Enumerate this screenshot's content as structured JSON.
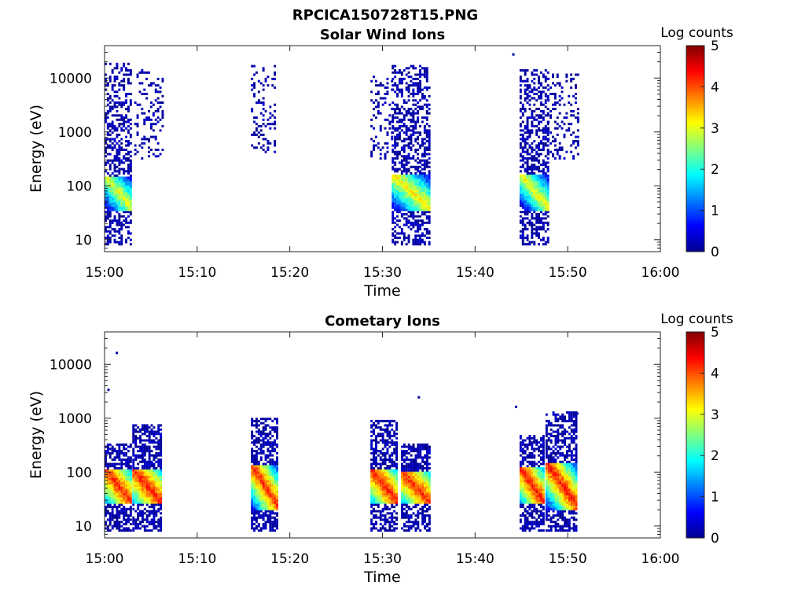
{
  "figure_title": "RPCICA150728T15.PNG",
  "chart_data": [
    {
      "type": "heatmap",
      "title": "Solar Wind Ions",
      "xlabel": "Time",
      "ylabel": "Energy (eV)",
      "xlim": [
        "15:00",
        "16:00"
      ],
      "xticks": [
        "15:00",
        "15:10",
        "15:20",
        "15:30",
        "15:40",
        "15:50",
        "16:00"
      ],
      "ylim": [
        6,
        40000
      ],
      "yscale": "log",
      "yticks": [
        "10",
        "100",
        "1000",
        "10000"
      ],
      "colorbar": {
        "label": "Log counts",
        "min": 0,
        "max": 5,
        "ticks": [
          "0",
          "1",
          "2",
          "3",
          "4",
          "5"
        ],
        "colormap": "jet"
      },
      "clusters": [
        {
          "start_min": 0.0,
          "end_min": 2.8,
          "sparse_emin": 8,
          "sparse_emax": 20000,
          "core_emin": 35,
          "core_emax": 150,
          "core_logcount": 3.0,
          "density": 0.55
        },
        {
          "start_min": 3.2,
          "end_min": 6.2,
          "sparse_emin": 300,
          "sparse_emax": 15000,
          "core_emin": 0,
          "core_emax": 0,
          "core_logcount": 0,
          "density": 0.3
        },
        {
          "start_min": 15.8,
          "end_min": 18.5,
          "sparse_emin": 400,
          "sparse_emax": 17000,
          "core_emin": 0,
          "core_emax": 0,
          "core_logcount": 0,
          "density": 0.25
        },
        {
          "start_min": 28.7,
          "end_min": 31.0,
          "sparse_emin": 300,
          "sparse_emax": 14000,
          "core_emin": 0,
          "core_emax": 0,
          "core_logcount": 0,
          "density": 0.3
        },
        {
          "start_min": 31.0,
          "end_min": 35.0,
          "sparse_emin": 8,
          "sparse_emax": 18000,
          "core_emin": 35,
          "core_emax": 160,
          "core_logcount": 3.2,
          "density": 0.6
        },
        {
          "start_min": 44.8,
          "end_min": 47.8,
          "sparse_emin": 8,
          "sparse_emax": 15000,
          "core_emin": 35,
          "core_emax": 170,
          "core_logcount": 3.1,
          "density": 0.6
        },
        {
          "start_min": 47.8,
          "end_min": 51.0,
          "sparse_emin": 300,
          "sparse_emax": 12000,
          "core_emin": 0,
          "core_emax": 0,
          "core_logcount": 0,
          "density": 0.3
        }
      ],
      "outliers": [
        {
          "t_min": 44.0,
          "energy": 27000
        }
      ]
    },
    {
      "type": "heatmap",
      "title": "Cometary Ions",
      "xlabel": "Time",
      "ylabel": "Energy (eV)",
      "xlim": [
        "15:00",
        "16:00"
      ],
      "xticks": [
        "15:00",
        "15:10",
        "15:20",
        "15:30",
        "15:40",
        "15:50",
        "16:00"
      ],
      "ylim": [
        6,
        40000
      ],
      "yscale": "log",
      "yticks": [
        "10",
        "100",
        "1000",
        "10000"
      ],
      "colorbar": {
        "label": "Log counts",
        "min": 0,
        "max": 5,
        "ticks": [
          "0",
          "1",
          "2",
          "3",
          "4",
          "5"
        ],
        "colormap": "jet"
      },
      "clusters": [
        {
          "start_min": 0.0,
          "end_min": 2.8,
          "sparse_emin": 8,
          "sparse_emax": 350,
          "core_emin": 25,
          "core_emax": 110,
          "core_logcount": 4.2,
          "density": 0.7
        },
        {
          "start_min": 3.0,
          "end_min": 6.0,
          "sparse_emin": 8,
          "sparse_emax": 800,
          "core_emin": 25,
          "core_emax": 110,
          "core_logcount": 4.3,
          "density": 0.7
        },
        {
          "start_min": 15.8,
          "end_min": 18.7,
          "sparse_emin": 8,
          "sparse_emax": 1000,
          "core_emin": 20,
          "core_emax": 130,
          "core_logcount": 4.2,
          "density": 0.7
        },
        {
          "start_min": 28.7,
          "end_min": 31.5,
          "sparse_emin": 8,
          "sparse_emax": 900,
          "core_emin": 25,
          "core_emax": 110,
          "core_logcount": 4.3,
          "density": 0.7
        },
        {
          "start_min": 32.0,
          "end_min": 35.0,
          "sparse_emin": 8,
          "sparse_emax": 350,
          "core_emin": 25,
          "core_emax": 100,
          "core_logcount": 4.2,
          "density": 0.7
        },
        {
          "start_min": 44.8,
          "end_min": 47.3,
          "sparse_emin": 8,
          "sparse_emax": 500,
          "core_emin": 25,
          "core_emax": 120,
          "core_logcount": 4.3,
          "density": 0.7
        },
        {
          "start_min": 47.6,
          "end_min": 51.0,
          "sparse_emin": 8,
          "sparse_emax": 1300,
          "core_emin": 20,
          "core_emax": 150,
          "core_logcount": 4.3,
          "density": 0.7
        }
      ],
      "outliers": [
        {
          "t_min": 0.3,
          "energy": 3300
        },
        {
          "t_min": 1.2,
          "energy": 16000
        },
        {
          "t_min": 33.8,
          "energy": 2400
        },
        {
          "t_min": 44.3,
          "energy": 1600
        },
        {
          "t_min": 50.9,
          "energy": 1200
        }
      ]
    }
  ]
}
